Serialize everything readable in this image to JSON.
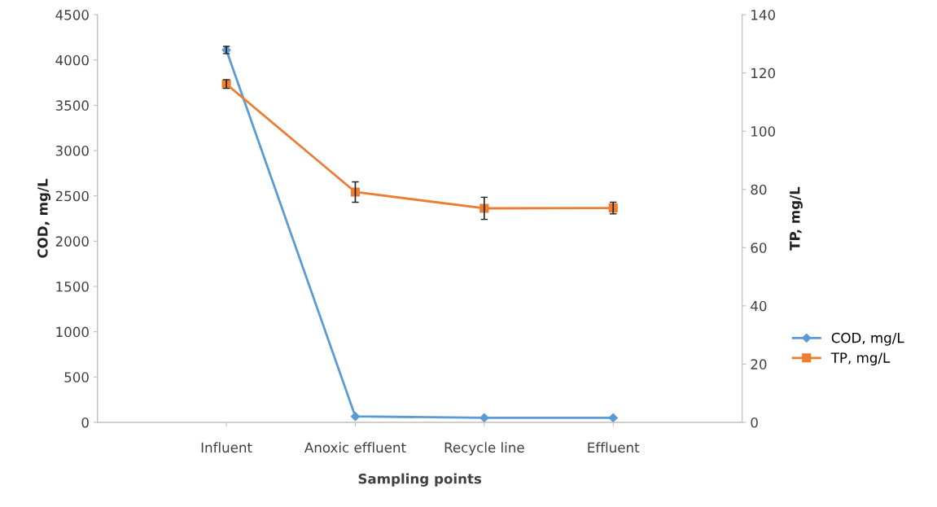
{
  "chart_data": {
    "type": "line",
    "categories": [
      "Influent",
      "Anoxic effluent",
      "Recycle line",
      "Effluent"
    ],
    "xlabel": "Sampling points",
    "ylabel": "COD, mg/L",
    "y2label": "TP, mg/L",
    "ylim": [
      0,
      4500
    ],
    "yticks": [
      0,
      500,
      1000,
      1500,
      2000,
      2500,
      3000,
      3500,
      4000,
      4500
    ],
    "y2lim": [
      0,
      140
    ],
    "y2ticks": [
      0,
      20,
      40,
      60,
      80,
      100,
      120,
      140
    ],
    "grid": false,
    "legend": "right",
    "series": [
      {
        "name": "COD, mg/L",
        "color": "#5b9bd5",
        "marker": "diamond",
        "values": [
          4110,
          65,
          50,
          50
        ],
        "errors": [
          40,
          null,
          null,
          null
        ]
      },
      {
        "name": "TP, mg/L",
        "color": "#ed7d31",
        "marker": "square",
        "axis": "y2",
        "values": [
          116.2,
          79.1,
          73.5,
          73.6
        ],
        "errors": [
          1.5,
          3.5,
          3.8,
          2
        ]
      }
    ]
  }
}
